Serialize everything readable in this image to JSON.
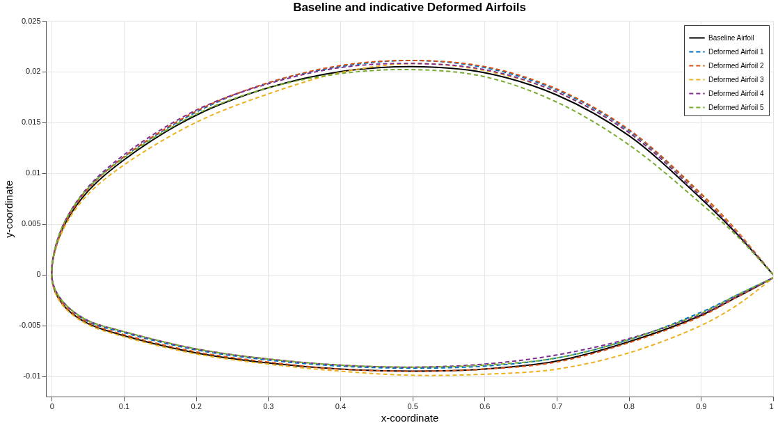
{
  "chart_data": {
    "type": "line",
    "title": "Baseline and indicative Deformed Airfoils",
    "xlabel": "x-coordinate",
    "ylabel": "y-coordinate",
    "x": [
      1,
      0.95,
      0.9,
      0.8,
      0.7,
      0.6,
      0.5,
      0.4,
      0.3,
      0.2,
      0.1,
      0.05,
      0.02,
      0.005,
      0,
      0.005,
      0.02,
      0.05,
      0.1,
      0.2,
      0.3,
      0.4,
      0.5,
      0.6,
      0.7,
      0.8,
      0.9,
      0.95,
      1
    ],
    "series": [
      {
        "name": "Baseline Airfoil",
        "color": "#000000",
        "line_style": "solid",
        "values": [
          0,
          0.004,
          0.0075,
          0.0137,
          0.0177,
          0.0199,
          0.0205,
          0.02,
          0.0184,
          0.0157,
          0.0113,
          0.0082,
          0.0052,
          0.0025,
          0,
          -0.0017,
          -0.0033,
          -0.0048,
          -0.006,
          -0.0077,
          -0.0087,
          -0.0093,
          -0.0095,
          -0.0093,
          -0.0085,
          -0.0066,
          -0.004,
          -0.0022,
          -0.0003
        ]
      },
      {
        "name": "Deformed Airfoil 1",
        "color": "#0072bd",
        "line_style": "dashed",
        "values": [
          0,
          0.0042,
          0.0079,
          0.0142,
          0.0182,
          0.0204,
          0.0211,
          0.0205,
          0.0189,
          0.016,
          0.0116,
          0.0085,
          0.0054,
          0.0026,
          0,
          -0.0015,
          -0.003,
          -0.0046,
          -0.0057,
          -0.0074,
          -0.0084,
          -0.009,
          -0.0092,
          -0.009,
          -0.0082,
          -0.0064,
          -0.0037,
          -0.002,
          -0.0003
        ]
      },
      {
        "name": "Deformed Airfoil 2",
        "color": "#d95319",
        "line_style": "dashed",
        "values": [
          0,
          0.0043,
          0.008,
          0.0143,
          0.0183,
          0.0205,
          0.0211,
          0.0206,
          0.0189,
          0.0161,
          0.0116,
          0.0084,
          0.0053,
          0.0026,
          0,
          -0.0016,
          -0.0032,
          -0.0047,
          -0.0059,
          -0.0076,
          -0.0086,
          -0.0093,
          -0.0095,
          -0.0093,
          -0.0086,
          -0.0067,
          -0.0041,
          -0.0022,
          -0.0003
        ]
      },
      {
        "name": "Deformed Airfoil 3",
        "color": "#edb120",
        "line_style": "dashed",
        "values": [
          0,
          0.0042,
          0.0078,
          0.014,
          0.018,
          0.0201,
          0.0208,
          0.0199,
          0.0178,
          0.015,
          0.0108,
          0.0079,
          0.005,
          0.0024,
          0,
          -0.0018,
          -0.0034,
          -0.0049,
          -0.0061,
          -0.0078,
          -0.0088,
          -0.0095,
          -0.0099,
          -0.0098,
          -0.0093,
          -0.0077,
          -0.005,
          -0.003,
          -0.0003
        ]
      },
      {
        "name": "Deformed Airfoil 4",
        "color": "#7e2f8e",
        "line_style": "dashed",
        "values": [
          0,
          0.0041,
          0.0077,
          0.014,
          0.018,
          0.0202,
          0.0208,
          0.0204,
          0.0188,
          0.0162,
          0.0118,
          0.0086,
          0.0055,
          0.0027,
          0,
          -0.0015,
          -0.003,
          -0.0045,
          -0.0056,
          -0.0073,
          -0.0083,
          -0.0089,
          -0.0091,
          -0.0088,
          -0.0079,
          -0.0063,
          -0.0039,
          -0.0021,
          -0.0003
        ]
      },
      {
        "name": "Deformed Airfoil 5",
        "color": "#77ac30",
        "line_style": "dashed",
        "values": [
          0,
          0.0038,
          0.007,
          0.0128,
          0.017,
          0.0195,
          0.0202,
          0.0198,
          0.0184,
          0.0158,
          0.0115,
          0.0085,
          0.0055,
          0.0027,
          0,
          -0.0015,
          -0.003,
          -0.0045,
          -0.0056,
          -0.0073,
          -0.0083,
          -0.0089,
          -0.0091,
          -0.0089,
          -0.0082,
          -0.0064,
          -0.0038,
          -0.002,
          -0.0003
        ]
      }
    ],
    "xlim": [
      -0.008,
      1
    ],
    "xticks": [
      0,
      0.1,
      0.2,
      0.3,
      0.4,
      0.5,
      0.6,
      0.7,
      0.8,
      0.9,
      1
    ],
    "ylim": [
      -0.012,
      0.025
    ],
    "yticks": [
      -0.01,
      -0.005,
      0,
      0.005,
      0.01,
      0.015,
      0.02,
      0.025
    ],
    "grid": true,
    "legend": "top right",
    "marker": "none"
  }
}
